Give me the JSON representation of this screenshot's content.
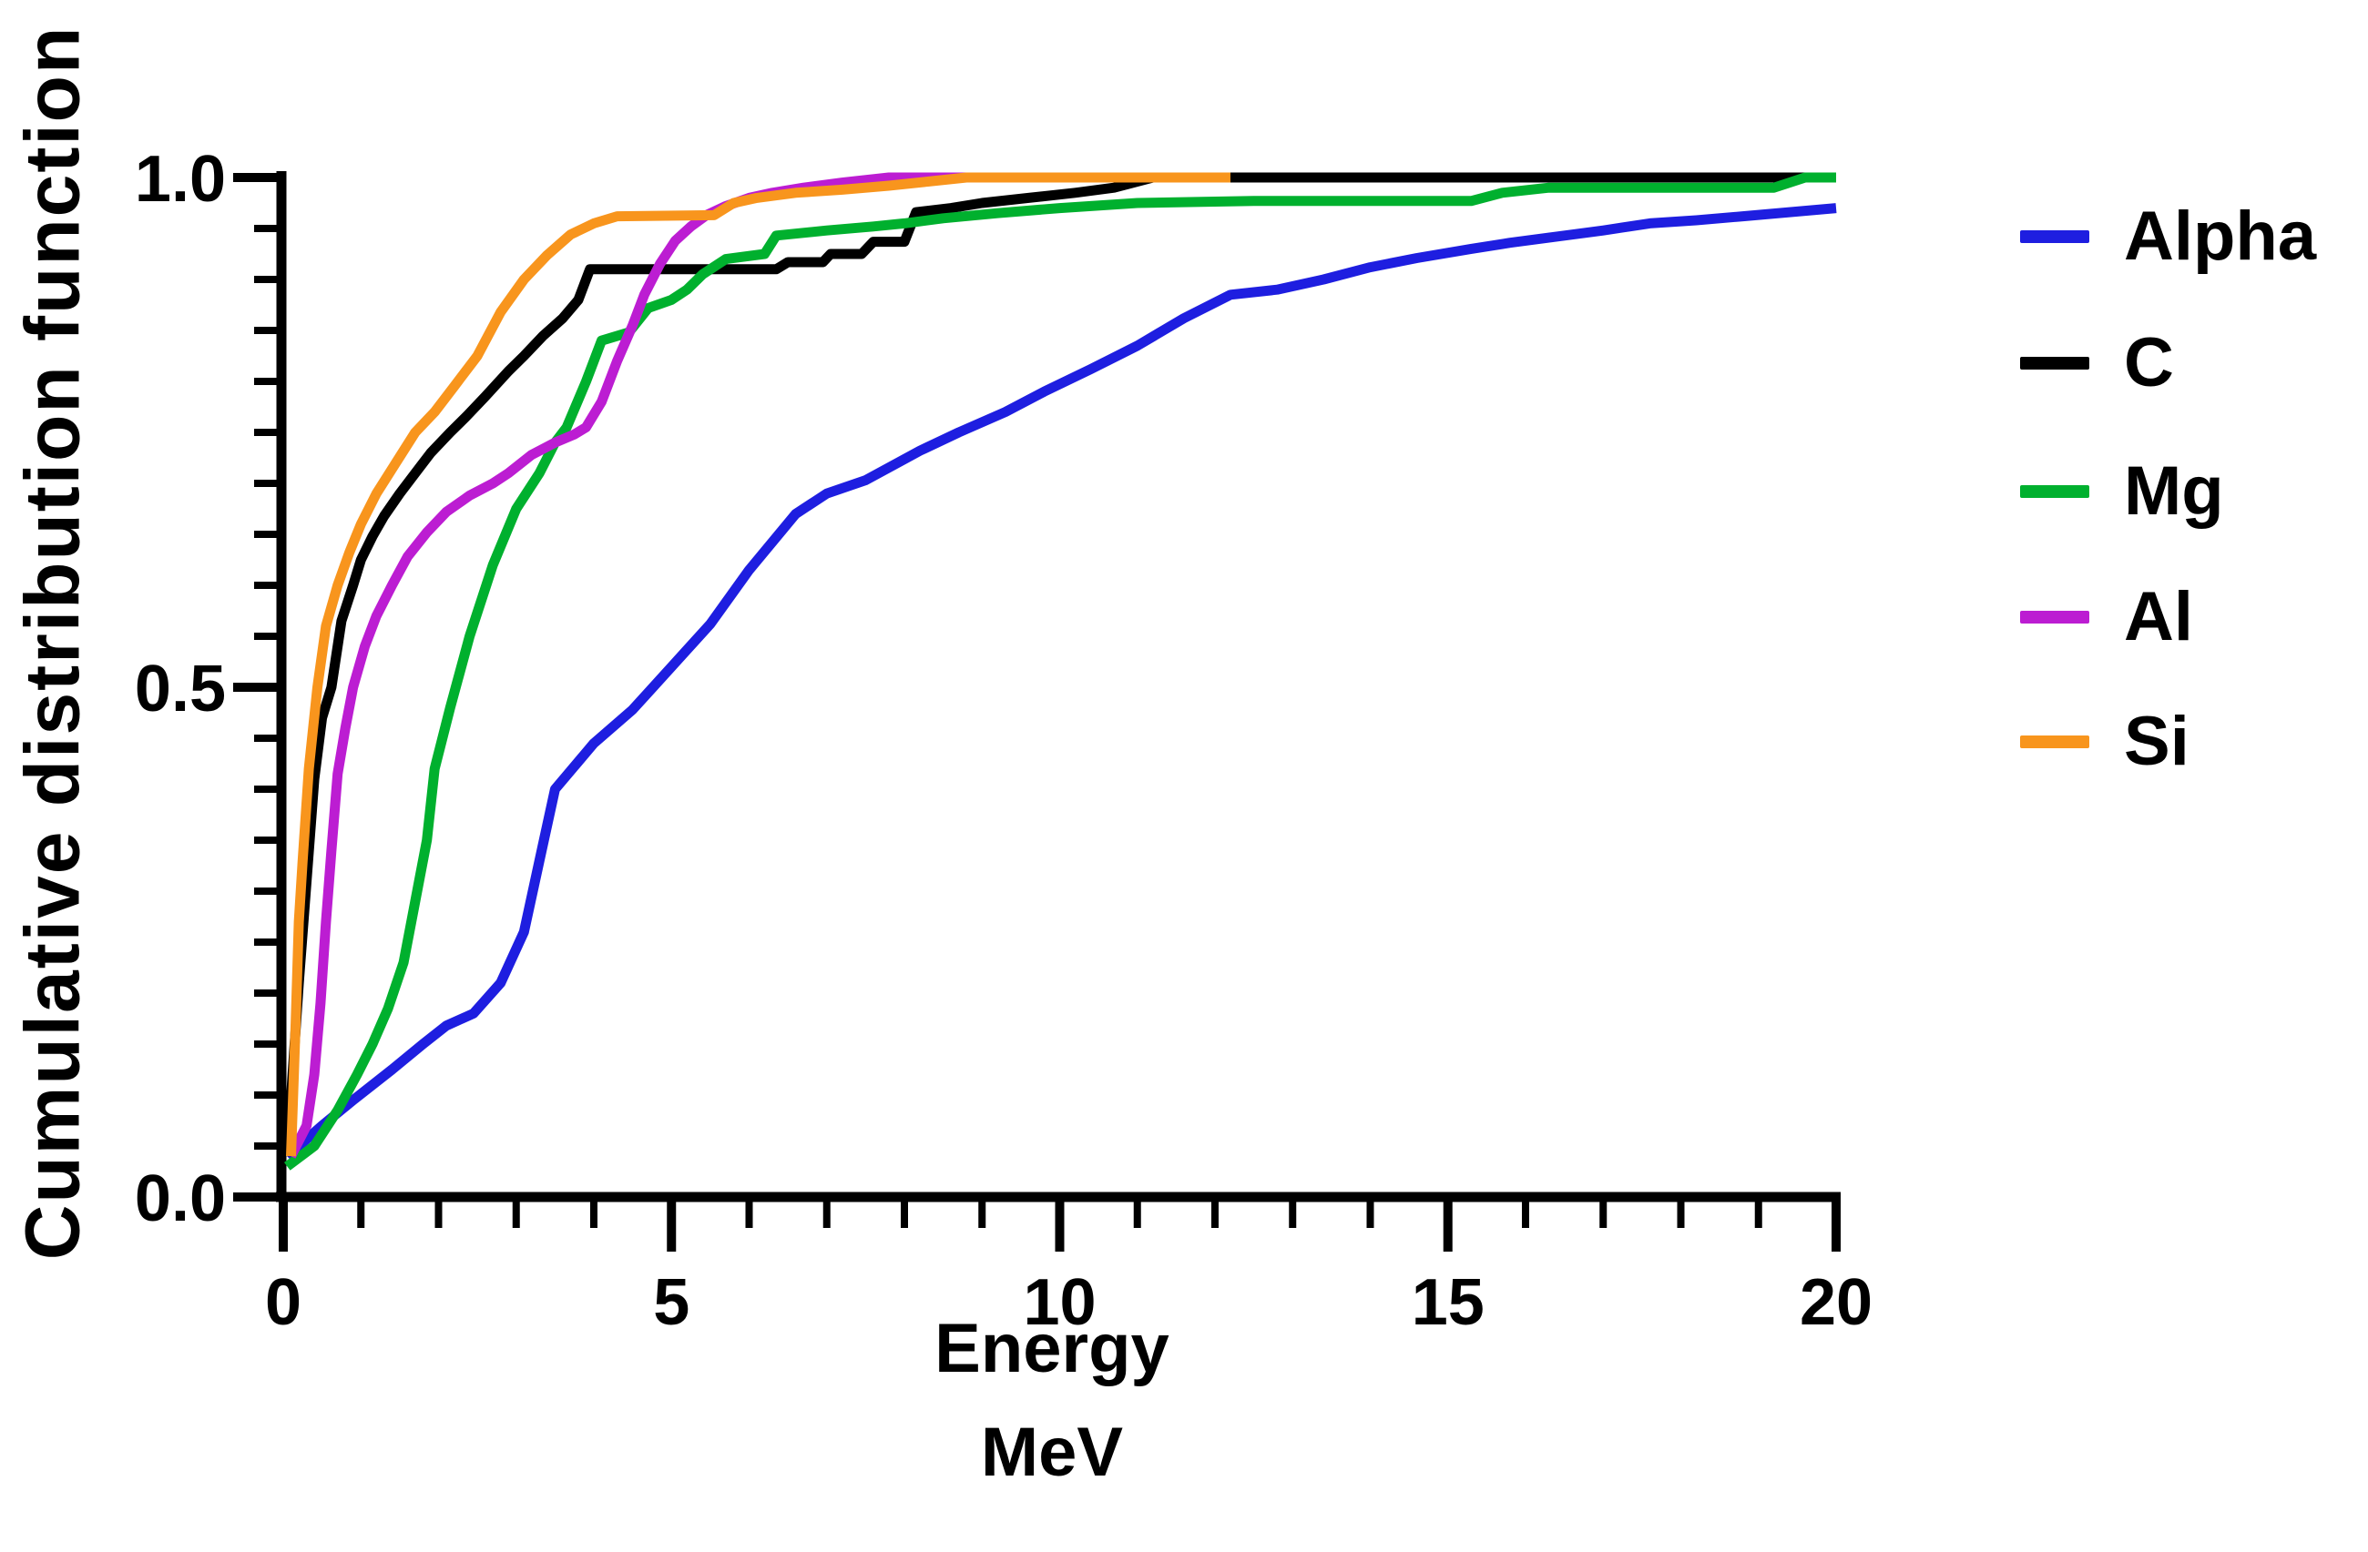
{
  "figure": {
    "ylabel": "Cumulative distribution function",
    "xlabel_line1": "Energy",
    "xlabel_line2": "MeV",
    "background_color": "#ffffff",
    "axis_color": "#000000"
  },
  "legend": {
    "position": "right",
    "items": [
      {
        "label": "Alpha",
        "color": "#1e1ee0"
      },
      {
        "label": "C",
        "color": "#000000"
      },
      {
        "label": "Mg",
        "color": "#00b02e"
      },
      {
        "label": "Al",
        "color": "#bc1dd2"
      },
      {
        "label": "Si",
        "color": "#f8951d"
      }
    ]
  },
  "chart_data": {
    "type": "line",
    "title": "",
    "xlabel": "Energy",
    "xlabel_units": "MeV",
    "ylabel": "Cumulative distribution function",
    "xlim": [
      0,
      20
    ],
    "ylim": [
      0,
      1
    ],
    "grid": false,
    "legend_position": "right",
    "x_major_ticks": [
      0,
      5,
      10,
      15,
      20
    ],
    "x_major_tick_labels": [
      "0",
      "5",
      "10",
      "15",
      "20"
    ],
    "x_minor_tick_step": 1,
    "y_major_ticks": [
      0,
      0.5,
      1
    ],
    "y_major_tick_labels": [
      "0.0",
      "0.5",
      "1.0"
    ],
    "y_minor_tick_step": 0.05,
    "series": [
      {
        "name": "Alpha",
        "color": "#1e1ee0",
        "points": [
          [
            0.05,
            0.04
          ],
          [
            0.5,
            0.07
          ],
          [
            0.9,
            0.095
          ],
          [
            1.4,
            0.125
          ],
          [
            1.8,
            0.15
          ],
          [
            2.1,
            0.168
          ],
          [
            2.45,
            0.18
          ],
          [
            2.8,
            0.21
          ],
          [
            3.1,
            0.26
          ],
          [
            3.3,
            0.33
          ],
          [
            3.5,
            0.4
          ],
          [
            4.0,
            0.445
          ],
          [
            4.5,
            0.478
          ],
          [
            5.0,
            0.52
          ],
          [
            5.5,
            0.562
          ],
          [
            6.0,
            0.615
          ],
          [
            6.6,
            0.67
          ],
          [
            7.0,
            0.69
          ],
          [
            7.5,
            0.703
          ],
          [
            8.2,
            0.732
          ],
          [
            8.7,
            0.75
          ],
          [
            9.3,
            0.77
          ],
          [
            9.8,
            0.79
          ],
          [
            10.4,
            0.812
          ],
          [
            11.0,
            0.835
          ],
          [
            11.6,
            0.862
          ],
          [
            12.2,
            0.885
          ],
          [
            12.8,
            0.89
          ],
          [
            13.4,
            0.9
          ],
          [
            14.0,
            0.912
          ],
          [
            14.6,
            0.921
          ],
          [
            15.3,
            0.93
          ],
          [
            15.8,
            0.936
          ],
          [
            16.3,
            0.941
          ],
          [
            17.0,
            0.948
          ],
          [
            17.6,
            0.955
          ],
          [
            18.2,
            0.958
          ],
          [
            18.8,
            0.962
          ],
          [
            19.4,
            0.966
          ],
          [
            20.0,
            0.97
          ]
        ]
      },
      {
        "name": "C",
        "color": "#000000",
        "points": [
          [
            0.05,
            0.04
          ],
          [
            0.12,
            0.12
          ],
          [
            0.2,
            0.21
          ],
          [
            0.3,
            0.31
          ],
          [
            0.4,
            0.41
          ],
          [
            0.5,
            0.47
          ],
          [
            0.62,
            0.5
          ],
          [
            0.75,
            0.565
          ],
          [
            0.9,
            0.6
          ],
          [
            1.0,
            0.625
          ],
          [
            1.15,
            0.648
          ],
          [
            1.3,
            0.668
          ],
          [
            1.5,
            0.69
          ],
          [
            1.7,
            0.71
          ],
          [
            1.9,
            0.73
          ],
          [
            2.15,
            0.75
          ],
          [
            2.35,
            0.765
          ],
          [
            2.6,
            0.785
          ],
          [
            2.9,
            0.81
          ],
          [
            3.1,
            0.825
          ],
          [
            3.35,
            0.845
          ],
          [
            3.6,
            0.862
          ],
          [
            3.8,
            0.88
          ],
          [
            3.95,
            0.91
          ],
          [
            6.35,
            0.91
          ],
          [
            6.5,
            0.917
          ],
          [
            6.95,
            0.917
          ],
          [
            7.05,
            0.925
          ],
          [
            7.45,
            0.925
          ],
          [
            7.6,
            0.937
          ],
          [
            8.0,
            0.937
          ],
          [
            8.15,
            0.966
          ],
          [
            8.6,
            0.97
          ],
          [
            9.0,
            0.975
          ],
          [
            9.6,
            0.98
          ],
          [
            10.2,
            0.985
          ],
          [
            10.7,
            0.99
          ],
          [
            11.2,
            1.0
          ],
          [
            20.0,
            1.0
          ]
        ]
      },
      {
        "name": "Mg",
        "color": "#00b02e",
        "points": [
          [
            0.05,
            0.03
          ],
          [
            0.4,
            0.05
          ],
          [
            0.7,
            0.085
          ],
          [
            0.95,
            0.12
          ],
          [
            1.15,
            0.15
          ],
          [
            1.35,
            0.185
          ],
          [
            1.55,
            0.23
          ],
          [
            1.7,
            0.29
          ],
          [
            1.85,
            0.35
          ],
          [
            1.95,
            0.42
          ],
          [
            2.15,
            0.48
          ],
          [
            2.4,
            0.55
          ],
          [
            2.7,
            0.62
          ],
          [
            3.0,
            0.675
          ],
          [
            3.3,
            0.71
          ],
          [
            3.5,
            0.74
          ],
          [
            3.65,
            0.755
          ],
          [
            3.9,
            0.8
          ],
          [
            4.1,
            0.84
          ],
          [
            4.45,
            0.848
          ],
          [
            4.7,
            0.872
          ],
          [
            5.0,
            0.88
          ],
          [
            5.2,
            0.89
          ],
          [
            5.4,
            0.905
          ],
          [
            5.7,
            0.92
          ],
          [
            6.2,
            0.925
          ],
          [
            6.35,
            0.943
          ],
          [
            7.0,
            0.948
          ],
          [
            7.6,
            0.952
          ],
          [
            8.0,
            0.955
          ],
          [
            8.5,
            0.96
          ],
          [
            9.2,
            0.965
          ],
          [
            10.0,
            0.97
          ],
          [
            11.0,
            0.975
          ],
          [
            12.5,
            0.977
          ],
          [
            15.3,
            0.977
          ],
          [
            15.7,
            0.985
          ],
          [
            16.3,
            0.99
          ],
          [
            19.2,
            0.99
          ],
          [
            19.6,
            1.0
          ],
          [
            20.0,
            1.0
          ]
        ]
      },
      {
        "name": "Al",
        "color": "#bc1dd2",
        "points": [
          [
            0.1,
            0.04
          ],
          [
            0.3,
            0.07
          ],
          [
            0.4,
            0.12
          ],
          [
            0.48,
            0.19
          ],
          [
            0.55,
            0.27
          ],
          [
            0.62,
            0.34
          ],
          [
            0.7,
            0.415
          ],
          [
            0.8,
            0.46
          ],
          [
            0.9,
            0.5
          ],
          [
            1.05,
            0.54
          ],
          [
            1.2,
            0.57
          ],
          [
            1.4,
            0.6
          ],
          [
            1.6,
            0.628
          ],
          [
            1.85,
            0.652
          ],
          [
            2.1,
            0.672
          ],
          [
            2.4,
            0.688
          ],
          [
            2.7,
            0.7
          ],
          [
            2.9,
            0.71
          ],
          [
            3.2,
            0.728
          ],
          [
            3.5,
            0.74
          ],
          [
            3.75,
            0.748
          ],
          [
            3.9,
            0.755
          ],
          [
            4.1,
            0.78
          ],
          [
            4.3,
            0.82
          ],
          [
            4.5,
            0.855
          ],
          [
            4.65,
            0.885
          ],
          [
            4.85,
            0.915
          ],
          [
            5.05,
            0.938
          ],
          [
            5.25,
            0.952
          ],
          [
            5.45,
            0.963
          ],
          [
            5.7,
            0.972
          ],
          [
            6.0,
            0.98
          ],
          [
            6.3,
            0.985
          ],
          [
            6.7,
            0.99
          ],
          [
            7.2,
            0.995
          ],
          [
            7.8,
            1.0
          ],
          [
            11.15,
            1.0
          ]
        ]
      },
      {
        "name": "Si",
        "color": "#f8951d",
        "points": [
          [
            0.1,
            0.04
          ],
          [
            0.16,
            0.17
          ],
          [
            0.2,
            0.27
          ],
          [
            0.25,
            0.33
          ],
          [
            0.33,
            0.42
          ],
          [
            0.44,
            0.5
          ],
          [
            0.55,
            0.56
          ],
          [
            0.7,
            0.6
          ],
          [
            0.85,
            0.632
          ],
          [
            1.0,
            0.66
          ],
          [
            1.2,
            0.69
          ],
          [
            1.45,
            0.72
          ],
          [
            1.7,
            0.75
          ],
          [
            1.95,
            0.77
          ],
          [
            2.2,
            0.795
          ],
          [
            2.5,
            0.825
          ],
          [
            2.8,
            0.868
          ],
          [
            3.1,
            0.9
          ],
          [
            3.4,
            0.924
          ],
          [
            3.7,
            0.944
          ],
          [
            4.0,
            0.955
          ],
          [
            4.3,
            0.962
          ],
          [
            5.55,
            0.963
          ],
          [
            5.8,
            0.975
          ],
          [
            6.1,
            0.98
          ],
          [
            6.6,
            0.985
          ],
          [
            7.2,
            0.988
          ],
          [
            7.8,
            0.992
          ],
          [
            8.3,
            0.996
          ],
          [
            8.8,
            1.0
          ],
          [
            12.2,
            1.0
          ]
        ]
      }
    ]
  }
}
